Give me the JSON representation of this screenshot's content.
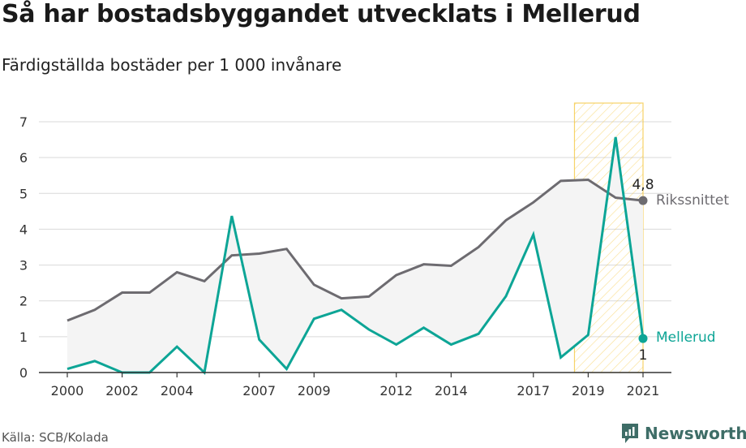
{
  "title": "Så har bostadsbyggandet utvecklats i Mellerud",
  "subtitle": "Färdigställda bostäder per 1 000 invånare",
  "source": "Källa: SCB/Kolada",
  "brand": "Newsworthy",
  "colors": {
    "riket": "#6d6b70",
    "mellerud": "#0da596",
    "highlight": "#f5c842",
    "grid": "#d9d9d9",
    "fill": "#f4f4f4"
  },
  "chart_data": {
    "type": "line",
    "x": [
      2000,
      2001,
      2002,
      2003,
      2004,
      2005,
      2006,
      2007,
      2008,
      2009,
      2010,
      2011,
      2012,
      2013,
      2014,
      2015,
      2016,
      2017,
      2018,
      2019,
      2020,
      2021
    ],
    "xticks": [
      "2000",
      "2002",
      "2004",
      "2007",
      "2009",
      "2012",
      "2014",
      "2017",
      "2019",
      "2021"
    ],
    "yticks": [
      "0",
      "1",
      "2",
      "3",
      "4",
      "5",
      "6",
      "7"
    ],
    "ylim": [
      0,
      7
    ],
    "series": [
      {
        "name": "Rikssnittet",
        "values": [
          1.45,
          1.75,
          2.23,
          2.23,
          2.8,
          2.55,
          3.27,
          3.32,
          3.45,
          2.45,
          2.07,
          2.12,
          2.72,
          3.02,
          2.98,
          3.5,
          4.25,
          4.75,
          5.35,
          5.38,
          4.88,
          4.8
        ],
        "end_label": "4,8"
      },
      {
        "name": "Mellerud",
        "values": [
          0.1,
          0.32,
          0.0,
          0.0,
          0.72,
          0.0,
          4.37,
          0.92,
          0.1,
          1.5,
          1.75,
          1.2,
          0.78,
          1.25,
          0.78,
          1.08,
          2.13,
          3.85,
          0.42,
          1.05,
          6.57,
          0.95
        ],
        "end_label": "1"
      }
    ],
    "highlight_range": [
      2018.5,
      2021
    ],
    "grid": true
  }
}
